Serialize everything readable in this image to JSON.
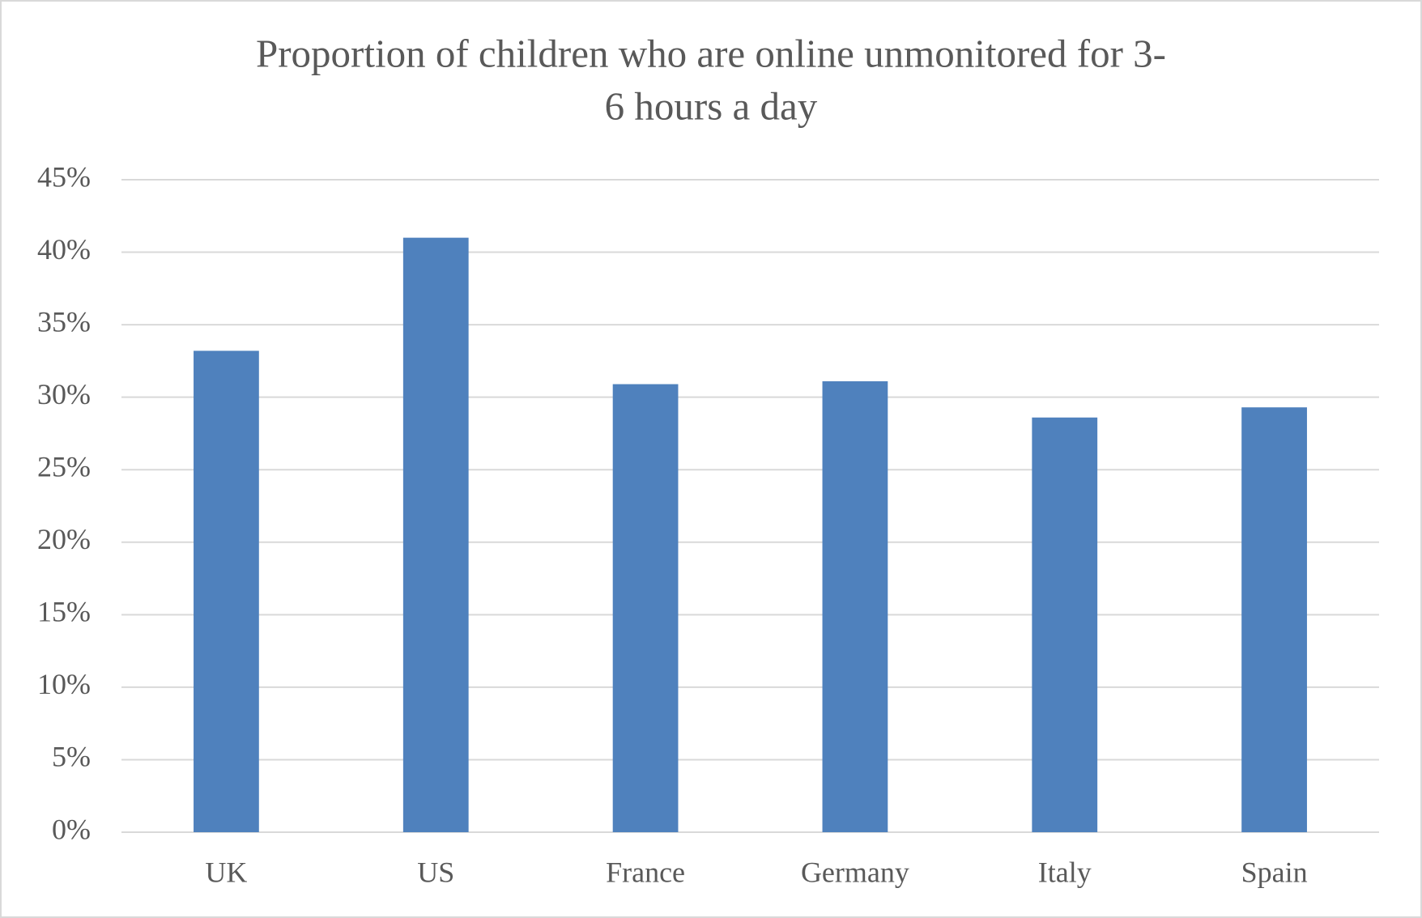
{
  "chart_data": {
    "type": "bar",
    "title": [
      "Proportion of children who are online unmonitored for 3-",
      "6 hours a day"
    ],
    "categories": [
      "UK",
      "US",
      "France",
      "Germany",
      "Italy",
      "Spain"
    ],
    "values": [
      33.2,
      41.0,
      30.9,
      31.1,
      28.6,
      29.3
    ],
    "color": "#4f81bd",
    "ylim": [
      0,
      45
    ],
    "yticks": [
      {
        "value": 0,
        "label": "0%"
      },
      {
        "value": 5,
        "label": "5%"
      },
      {
        "value": 10,
        "label": "10%"
      },
      {
        "value": 15,
        "label": "15%"
      },
      {
        "value": 20,
        "label": "20%"
      },
      {
        "value": 25,
        "label": "25%"
      },
      {
        "value": 30,
        "label": "30%"
      },
      {
        "value": 35,
        "label": "35%"
      },
      {
        "value": 40,
        "label": "40%"
      },
      {
        "value": 45,
        "label": "45%"
      }
    ],
    "grid": true
  }
}
